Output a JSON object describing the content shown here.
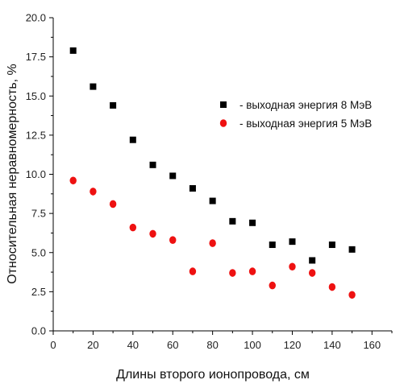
{
  "chart_data": {
    "type": "scatter",
    "title": "",
    "xlabel": "Длины второго ионопровода, см",
    "ylabel": "Относительная неравномерность, %",
    "xlim": [
      0,
      170
    ],
    "ylim": [
      0,
      20
    ],
    "x_ticks": [
      "0",
      "20",
      "40",
      "60",
      "80",
      "100",
      "120",
      "140",
      "160"
    ],
    "y_ticks": [
      "0.0",
      "2.5",
      "5.0",
      "7.5",
      "10.0",
      "12.5",
      "15.0",
      "17.5",
      "20.0"
    ],
    "grid": false,
    "legend_position": "right",
    "series": [
      {
        "name": "- выходная энергия 8 МэВ",
        "marker": "square",
        "color": "#000000",
        "x": [
          10,
          20,
          30,
          40,
          50,
          60,
          70,
          80,
          90,
          100,
          110,
          120,
          130,
          140,
          150
        ],
        "y": [
          17.9,
          15.6,
          14.4,
          12.2,
          10.6,
          9.9,
          9.1,
          8.3,
          7.0,
          6.9,
          5.5,
          5.7,
          4.5,
          5.5,
          5.2
        ]
      },
      {
        "name": "- выходная энергия 5 МэВ",
        "marker": "circle",
        "color": "#ee1111",
        "x": [
          10,
          20,
          30,
          40,
          50,
          60,
          70,
          80,
          90,
          100,
          110,
          120,
          130,
          140,
          150
        ],
        "y": [
          9.6,
          8.9,
          8.1,
          6.6,
          6.2,
          5.8,
          3.8,
          5.6,
          3.7,
          3.8,
          2.9,
          4.1,
          3.7,
          2.8,
          2.3
        ]
      }
    ]
  }
}
